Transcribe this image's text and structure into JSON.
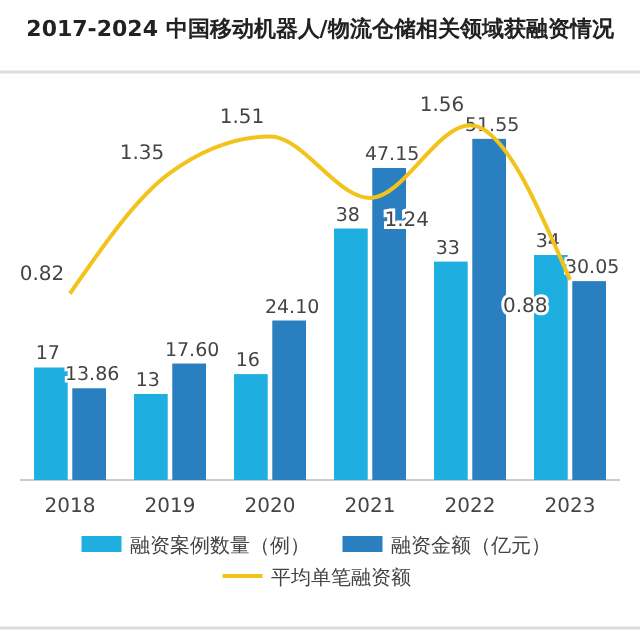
{
  "chart_data": {
    "type": "bar",
    "title": "2017-2024 中国移动机器人/物流仓储相关领域获融资情况",
    "categories": [
      "2018",
      "2019",
      "2020",
      "2021",
      "2022",
      "2023"
    ],
    "series": [
      {
        "name": "融资案例数量（例）",
        "color": "#1eaee0",
        "values": [
          17,
          13,
          16,
          38,
          33,
          34
        ]
      },
      {
        "name": "融资金额（亿元）",
        "color": "#2a7fc1",
        "values": [
          13.86,
          17.6,
          24.1,
          47.15,
          51.55,
          30.05
        ],
        "value_labels": [
          "13.86",
          "17.60",
          "24.10",
          "47.15",
          "51.55",
          "30.05"
        ]
      },
      {
        "name": "平均单笔融资额",
        "type": "line",
        "axis": "y2",
        "color": "#f2c31a",
        "values": [
          0.82,
          1.35,
          1.51,
          1.24,
          1.56,
          0.88
        ]
      }
    ],
    "tick_labels": "x",
    "data_labels": true,
    "legend": "bottom",
    "marker": "none",
    "line_style": "solid"
  }
}
